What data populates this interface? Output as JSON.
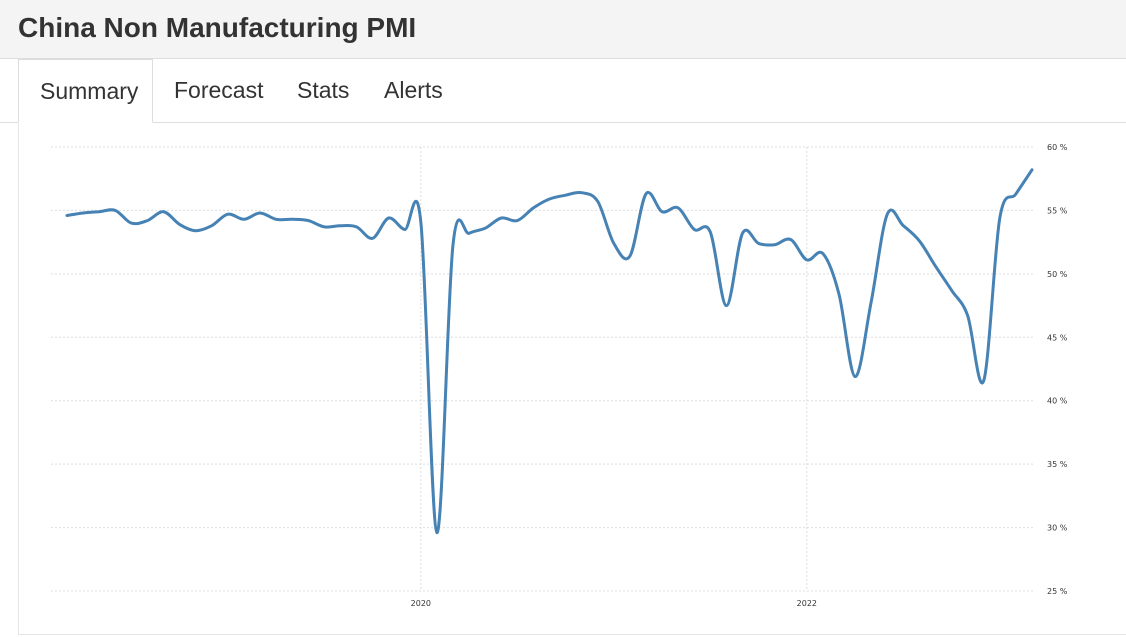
{
  "header": {
    "title": "China Non Manufacturing PMI"
  },
  "tabs": [
    {
      "label": "Summary",
      "active": true
    },
    {
      "label": "Forecast",
      "active": false
    },
    {
      "label": "Stats",
      "active": false
    },
    {
      "label": "Alerts",
      "active": false
    }
  ],
  "chart_data": {
    "type": "line",
    "title": "",
    "xlabel": "",
    "ylabel": "",
    "ylim": [
      25,
      60
    ],
    "grid": true,
    "line_color": "#4682b4",
    "y_ticks": [
      {
        "value": 60,
        "label": "60 %"
      },
      {
        "value": 55,
        "label": "55 %"
      },
      {
        "value": 50,
        "label": "50 %"
      },
      {
        "value": 45,
        "label": "45 %"
      },
      {
        "value": 40,
        "label": "40 %"
      },
      {
        "value": 35,
        "label": "35 %"
      },
      {
        "value": 30,
        "label": "30 %"
      },
      {
        "value": 25,
        "label": "25 %"
      }
    ],
    "x_ticks": [
      {
        "value": "2020-01",
        "label": "2020"
      },
      {
        "value": "2022-01",
        "label": "2022"
      }
    ],
    "series": [
      {
        "x": [
          "2018-03",
          "2018-04",
          "2018-05",
          "2018-06",
          "2018-07",
          "2018-08",
          "2018-09",
          "2018-10",
          "2018-11",
          "2018-12",
          "2019-01",
          "2019-02",
          "2019-03",
          "2019-04",
          "2019-05",
          "2019-06",
          "2019-07",
          "2019-08",
          "2019-09",
          "2019-10",
          "2019-11",
          "2019-12",
          "2020-01",
          "2020-02",
          "2020-03",
          "2020-04",
          "2020-05",
          "2020-06",
          "2020-07",
          "2020-08",
          "2020-09",
          "2020-10",
          "2020-11",
          "2020-12",
          "2021-01",
          "2021-02",
          "2021-03",
          "2021-04",
          "2021-05",
          "2021-06",
          "2021-07",
          "2021-08",
          "2021-09",
          "2021-10",
          "2021-11",
          "2021-12",
          "2022-01",
          "2022-02",
          "2022-03",
          "2022-04",
          "2022-05",
          "2022-06",
          "2022-07",
          "2022-08",
          "2022-09",
          "2022-10",
          "2022-11",
          "2022-12",
          "2023-01",
          "2023-02",
          "2023-03"
        ],
        "y": [
          54.6,
          54.8,
          54.9,
          55.0,
          54.0,
          54.2,
          54.9,
          53.9,
          53.4,
          53.8,
          54.7,
          54.3,
          54.8,
          54.3,
          54.3,
          54.2,
          53.7,
          53.8,
          53.7,
          52.8,
          54.4,
          53.5,
          54.1,
          29.6,
          52.3,
          53.2,
          53.6,
          54.4,
          54.2,
          55.2,
          55.9,
          56.2,
          56.4,
          55.7,
          52.4,
          51.4,
          56.3,
          54.9,
          55.2,
          53.5,
          53.3,
          47.5,
          53.2,
          52.4,
          52.3,
          52.7,
          51.1,
          51.6,
          48.4,
          41.9,
          47.8,
          54.7,
          53.8,
          52.6,
          50.6,
          48.7,
          46.7,
          41.6,
          54.4,
          56.3,
          58.2
        ]
      }
    ]
  }
}
